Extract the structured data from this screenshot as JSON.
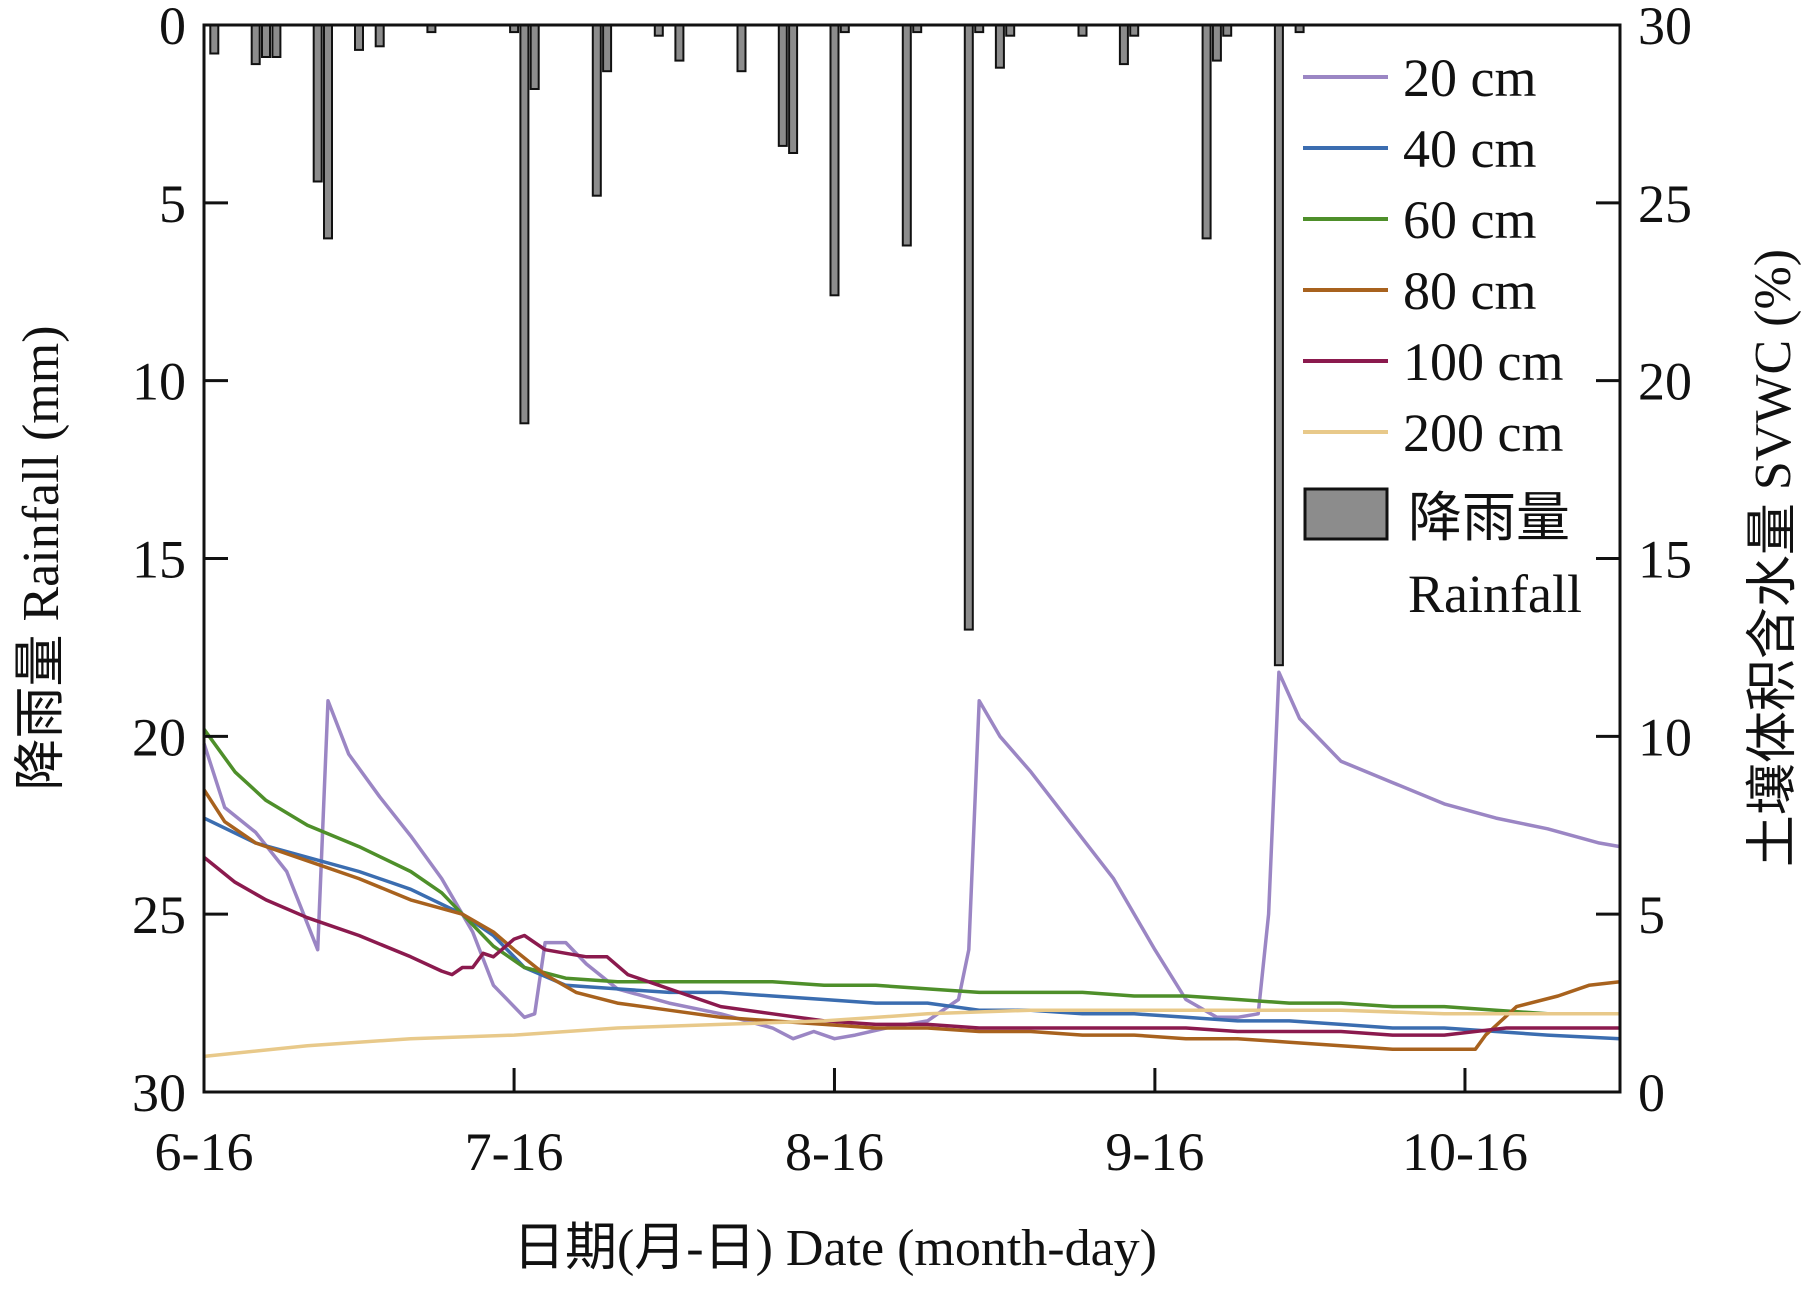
{
  "chart_data": {
    "type": "bar+line",
    "x_axis": {
      "label": "日期(月-日) Date (month-day)",
      "tick_labels": [
        "6-16",
        "7-16",
        "8-16",
        "9-16",
        "10-16"
      ],
      "tick_days": [
        0,
        30,
        61,
        92,
        122
      ],
      "range_days": [
        0,
        137
      ]
    },
    "y_left": {
      "label": "降雨量 Rainfall (mm)",
      "range": [
        0,
        30
      ],
      "inverted": true,
      "ticks": [
        0,
        5,
        10,
        15,
        20,
        25,
        30
      ]
    },
    "y_right": {
      "label": "土壤体积含水量 SVWC (%)",
      "range": [
        0,
        30
      ],
      "ticks": [
        0,
        5,
        10,
        15,
        20,
        25,
        30
      ]
    },
    "rainfall": {
      "name_zh": "降雨量",
      "name_en": "Rainfall",
      "color": "#8c8c8c",
      "points": [
        [
          1,
          0.8
        ],
        [
          5,
          1.1
        ],
        [
          6,
          0.9
        ],
        [
          7,
          0.9
        ],
        [
          11,
          4.4
        ],
        [
          12,
          6.0
        ],
        [
          15,
          0.7
        ],
        [
          17,
          0.6
        ],
        [
          22,
          0.2
        ],
        [
          30,
          0.2
        ],
        [
          31,
          11.2
        ],
        [
          32,
          1.8
        ],
        [
          38,
          4.8
        ],
        [
          39,
          1.3
        ],
        [
          44,
          0.3
        ],
        [
          46,
          1.0
        ],
        [
          52,
          1.3
        ],
        [
          56,
          3.4
        ],
        [
          57,
          3.6
        ],
        [
          61,
          7.6
        ],
        [
          62,
          0.2
        ],
        [
          68,
          6.2
        ],
        [
          69,
          0.2
        ],
        [
          74,
          17.0
        ],
        [
          75,
          0.2
        ],
        [
          77,
          1.2
        ],
        [
          78,
          0.3
        ],
        [
          85,
          0.3
        ],
        [
          89,
          1.1
        ],
        [
          90,
          0.3
        ],
        [
          97,
          6.0
        ],
        [
          98,
          1.0
        ],
        [
          99,
          0.3
        ],
        [
          104,
          18.0
        ],
        [
          106,
          0.2
        ]
      ]
    },
    "series": [
      {
        "name": "20 cm",
        "color": "#9b86c4",
        "points": [
          [
            0,
            9.8
          ],
          [
            2,
            8.0
          ],
          [
            5,
            7.3
          ],
          [
            8,
            6.2
          ],
          [
            11,
            4.0
          ],
          [
            12,
            11.0
          ],
          [
            14,
            9.5
          ],
          [
            17,
            8.3
          ],
          [
            20,
            7.2
          ],
          [
            23,
            6.0
          ],
          [
            26,
            4.5
          ],
          [
            28,
            3.0
          ],
          [
            31,
            2.1
          ],
          [
            32,
            2.2
          ],
          [
            33,
            4.2
          ],
          [
            35,
            4.2
          ],
          [
            37,
            3.6
          ],
          [
            40,
            2.9
          ],
          [
            45,
            2.5
          ],
          [
            50,
            2.2
          ],
          [
            55,
            1.8
          ],
          [
            57,
            1.5
          ],
          [
            59,
            1.7
          ],
          [
            61,
            1.5
          ],
          [
            63,
            1.6
          ],
          [
            66,
            1.8
          ],
          [
            70,
            2.0
          ],
          [
            73,
            2.6
          ],
          [
            74,
            4.0
          ],
          [
            75,
            11.0
          ],
          [
            77,
            10.0
          ],
          [
            80,
            9.0
          ],
          [
            84,
            7.5
          ],
          [
            88,
            6.0
          ],
          [
            92,
            4.0
          ],
          [
            95,
            2.6
          ],
          [
            98,
            2.1
          ],
          [
            100,
            2.1
          ],
          [
            102,
            2.2
          ],
          [
            103,
            5.0
          ],
          [
            104,
            11.8
          ],
          [
            106,
            10.5
          ],
          [
            110,
            9.3
          ],
          [
            115,
            8.7
          ],
          [
            120,
            8.1
          ],
          [
            125,
            7.7
          ],
          [
            130,
            7.4
          ],
          [
            135,
            7.0
          ],
          [
            137,
            6.9
          ]
        ]
      },
      {
        "name": "40 cm",
        "color": "#3b6db0",
        "points": [
          [
            0,
            7.7
          ],
          [
            5,
            7.0
          ],
          [
            10,
            6.6
          ],
          [
            15,
            6.2
          ],
          [
            20,
            5.7
          ],
          [
            25,
            5.0
          ],
          [
            28,
            4.4
          ],
          [
            31,
            3.5
          ],
          [
            35,
            3.0
          ],
          [
            40,
            2.9
          ],
          [
            45,
            2.8
          ],
          [
            50,
            2.8
          ],
          [
            55,
            2.7
          ],
          [
            60,
            2.6
          ],
          [
            65,
            2.5
          ],
          [
            70,
            2.5
          ],
          [
            75,
            2.3
          ],
          [
            80,
            2.3
          ],
          [
            85,
            2.2
          ],
          [
            90,
            2.2
          ],
          [
            95,
            2.1
          ],
          [
            100,
            2.0
          ],
          [
            105,
            2.0
          ],
          [
            110,
            1.9
          ],
          [
            115,
            1.8
          ],
          [
            120,
            1.8
          ],
          [
            125,
            1.7
          ],
          [
            130,
            1.6
          ],
          [
            137,
            1.5
          ]
        ]
      },
      {
        "name": "60 cm",
        "color": "#4e8f2a",
        "points": [
          [
            0,
            10.2
          ],
          [
            3,
            9.0
          ],
          [
            6,
            8.2
          ],
          [
            10,
            7.5
          ],
          [
            15,
            6.9
          ],
          [
            20,
            6.2
          ],
          [
            23,
            5.6
          ],
          [
            26,
            4.7
          ],
          [
            28,
            4.1
          ],
          [
            31,
            3.5
          ],
          [
            35,
            3.2
          ],
          [
            40,
            3.1
          ],
          [
            45,
            3.1
          ],
          [
            50,
            3.1
          ],
          [
            55,
            3.1
          ],
          [
            60,
            3.0
          ],
          [
            65,
            3.0
          ],
          [
            70,
            2.9
          ],
          [
            75,
            2.8
          ],
          [
            80,
            2.8
          ],
          [
            85,
            2.8
          ],
          [
            90,
            2.7
          ],
          [
            95,
            2.7
          ],
          [
            100,
            2.6
          ],
          [
            105,
            2.5
          ],
          [
            110,
            2.5
          ],
          [
            115,
            2.4
          ],
          [
            120,
            2.4
          ],
          [
            125,
            2.3
          ],
          [
            130,
            2.2
          ],
          [
            137,
            2.2
          ]
        ]
      },
      {
        "name": "80 cm",
        "color": "#a8621e",
        "points": [
          [
            0,
            8.5
          ],
          [
            2,
            7.6
          ],
          [
            5,
            7.0
          ],
          [
            10,
            6.5
          ],
          [
            15,
            6.0
          ],
          [
            20,
            5.4
          ],
          [
            25,
            5.0
          ],
          [
            28,
            4.5
          ],
          [
            30,
            4.0
          ],
          [
            33,
            3.3
          ],
          [
            36,
            2.8
          ],
          [
            40,
            2.5
          ],
          [
            45,
            2.3
          ],
          [
            50,
            2.1
          ],
          [
            55,
            2.0
          ],
          [
            60,
            1.9
          ],
          [
            65,
            1.8
          ],
          [
            70,
            1.8
          ],
          [
            75,
            1.7
          ],
          [
            80,
            1.7
          ],
          [
            85,
            1.6
          ],
          [
            90,
            1.6
          ],
          [
            95,
            1.5
          ],
          [
            100,
            1.5
          ],
          [
            105,
            1.4
          ],
          [
            110,
            1.3
          ],
          [
            115,
            1.2
          ],
          [
            120,
            1.2
          ],
          [
            123,
            1.2
          ],
          [
            124,
            1.6
          ],
          [
            127,
            2.4
          ],
          [
            131,
            2.7
          ],
          [
            134,
            3.0
          ],
          [
            137,
            3.1
          ]
        ]
      },
      {
        "name": "100 cm",
        "color": "#8b1a4e",
        "points": [
          [
            0,
            6.6
          ],
          [
            3,
            5.9
          ],
          [
            6,
            5.4
          ],
          [
            10,
            4.9
          ],
          [
            15,
            4.4
          ],
          [
            20,
            3.8
          ],
          [
            23,
            3.4
          ],
          [
            24,
            3.3
          ],
          [
            25,
            3.5
          ],
          [
            26,
            3.5
          ],
          [
            27,
            3.9
          ],
          [
            28,
            3.8
          ],
          [
            30,
            4.3
          ],
          [
            31,
            4.4
          ],
          [
            33,
            4.0
          ],
          [
            35,
            3.9
          ],
          [
            37,
            3.8
          ],
          [
            39,
            3.8
          ],
          [
            41,
            3.3
          ],
          [
            43,
            3.1
          ],
          [
            46,
            2.8
          ],
          [
            50,
            2.4
          ],
          [
            55,
            2.2
          ],
          [
            60,
            2.0
          ],
          [
            65,
            1.9
          ],
          [
            70,
            1.9
          ],
          [
            75,
            1.8
          ],
          [
            80,
            1.8
          ],
          [
            85,
            1.8
          ],
          [
            90,
            1.8
          ],
          [
            95,
            1.8
          ],
          [
            100,
            1.7
          ],
          [
            105,
            1.7
          ],
          [
            110,
            1.7
          ],
          [
            115,
            1.6
          ],
          [
            120,
            1.6
          ],
          [
            123,
            1.7
          ],
          [
            126,
            1.8
          ],
          [
            130,
            1.8
          ],
          [
            137,
            1.8
          ]
        ]
      },
      {
        "name": "200 cm",
        "color": "#e8c98a",
        "points": [
          [
            0,
            1.0
          ],
          [
            10,
            1.3
          ],
          [
            20,
            1.5
          ],
          [
            30,
            1.6
          ],
          [
            40,
            1.8
          ],
          [
            50,
            1.9
          ],
          [
            60,
            2.0
          ],
          [
            70,
            2.2
          ],
          [
            80,
            2.3
          ],
          [
            90,
            2.3
          ],
          [
            100,
            2.3
          ],
          [
            110,
            2.3
          ],
          [
            120,
            2.2
          ],
          [
            130,
            2.2
          ],
          [
            137,
            2.2
          ]
        ]
      }
    ],
    "legend": {
      "position": "top-right",
      "entries": [
        "20 cm",
        "40 cm",
        "60 cm",
        "80 cm",
        "100 cm",
        "200 cm"
      ],
      "bar_entry_zh": "降雨量",
      "bar_entry_en": "Rainfall"
    },
    "grid": false
  }
}
